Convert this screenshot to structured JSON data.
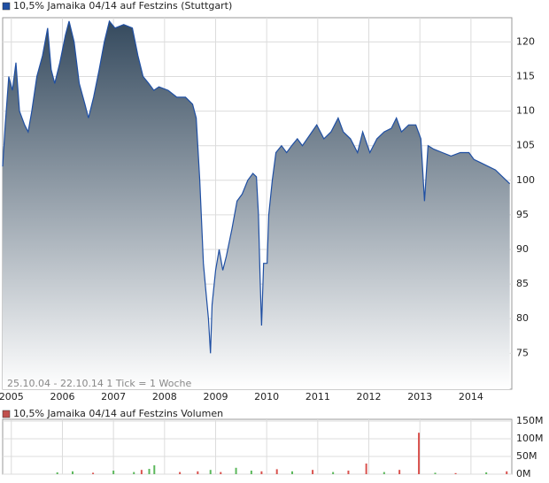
{
  "chart_data": [
    {
      "type": "area",
      "annotation": "25.10.04 - 22.10.14   1 Tick = 1 Woche",
      "xlim": [
        2004.83,
        2014.8
      ],
      "xticks": [
        2005,
        2006,
        2007,
        2008,
        2009,
        2010,
        2011,
        2012,
        2013,
        2014
      ],
      "ylim": [
        69.8,
        123.5
      ],
      "yticks": [
        75,
        80,
        85,
        90,
        95,
        100,
        105,
        110,
        115,
        120
      ],
      "grid": true,
      "x": [
        2004.83,
        2004.88,
        2004.95,
        2005.02,
        2005.09,
        2005.16,
        2005.26,
        2005.33,
        2005.4,
        2005.5,
        2005.61,
        2005.71,
        2005.78,
        2005.85,
        2005.95,
        2006.06,
        2006.13,
        2006.23,
        2006.33,
        2006.44,
        2006.51,
        2006.61,
        2006.72,
        2006.82,
        2006.92,
        2007.03,
        2007.2,
        2007.37,
        2007.48,
        2007.58,
        2007.69,
        2007.79,
        2007.89,
        2008.07,
        2008.24,
        2008.41,
        2008.55,
        2008.62,
        2008.69,
        2008.76,
        2008.81,
        2008.86,
        2008.9,
        2008.93,
        2009.0,
        2009.07,
        2009.14,
        2009.21,
        2009.32,
        2009.42,
        2009.52,
        2009.63,
        2009.73,
        2009.8,
        2009.84,
        2009.87,
        2009.9,
        2009.94,
        2010.01,
        2010.04,
        2010.11,
        2010.18,
        2010.29,
        2010.39,
        2010.49,
        2010.6,
        2010.7,
        2010.84,
        2010.98,
        2011.12,
        2011.26,
        2011.4,
        2011.5,
        2011.64,
        2011.78,
        2011.88,
        2012.02,
        2012.16,
        2012.3,
        2012.44,
        2012.54,
        2012.64,
        2012.78,
        2012.92,
        2013.02,
        2013.09,
        2013.16,
        2013.27,
        2013.44,
        2013.61,
        2013.79,
        2013.96,
        2014.06,
        2014.2,
        2014.34,
        2014.48,
        2014.62,
        2014.76
      ],
      "series": [
        {
          "name": "10,5% Jamaika 04/14 auf Festzins (Stuttgart)",
          "color": "#1f4fa3",
          "values": [
            102,
            108,
            115,
            113,
            117,
            110,
            108,
            107,
            110,
            115,
            118,
            122,
            116,
            114,
            117,
            121,
            123,
            120,
            114,
            111,
            109,
            112,
            116,
            120,
            123,
            122,
            122.5,
            122,
            118,
            115,
            114,
            113,
            113.5,
            113,
            112,
            112,
            111,
            109,
            100,
            88,
            84,
            80,
            75,
            82,
            87,
            90,
            87,
            89,
            93,
            97,
            98,
            100,
            101,
            100.5,
            95,
            86,
            79,
            88,
            88,
            95,
            100,
            104,
            105,
            104,
            105,
            106,
            105,
            106.5,
            108,
            106,
            107,
            109,
            107,
            106,
            104,
            107,
            104,
            106,
            107,
            107.5,
            109,
            107,
            108,
            108,
            106,
            97,
            105,
            104.5,
            104,
            103.5,
            104,
            104,
            103,
            102.5,
            102,
            101.5,
            100.5,
            99.5
          ]
        }
      ]
    },
    {
      "type": "bar",
      "xlim": [
        2004.83,
        2014.8
      ],
      "xticks": [
        2005,
        2006,
        2007,
        2008,
        2009,
        2010,
        2011,
        2012,
        2013,
        2014
      ],
      "ylim": [
        0,
        155
      ],
      "yticks": [
        {
          "value": 0,
          "label": "0M"
        },
        {
          "value": 50,
          "label": "50M"
        },
        {
          "value": 100,
          "label": "100M"
        },
        {
          "value": 150,
          "label": "150M"
        }
      ],
      "grid": true,
      "x": [
        2005.9,
        2006.2,
        2006.6,
        2007.0,
        2007.4,
        2007.55,
        2007.7,
        2007.8,
        2008.3,
        2008.65,
        2008.9,
        2009.1,
        2009.4,
        2009.7,
        2009.9,
        2010.2,
        2010.5,
        2010.9,
        2011.3,
        2011.6,
        2011.95,
        2012.3,
        2012.6,
        2012.98,
        2013.3,
        2013.7,
        2014.3,
        2014.7
      ],
      "series": [
        {
          "name": "10,5% Jamaika 04/14 auf Festzins Volumen",
          "color": "#c0504d",
          "values": [
            5,
            8,
            4,
            10,
            6,
            12,
            15,
            25,
            6,
            8,
            12,
            6,
            18,
            10,
            8,
            14,
            8,
            12,
            6,
            10,
            30,
            6,
            12,
            117,
            4,
            3,
            5,
            8
          ],
          "colors": [
            "#5cb85c",
            "#5cb85c",
            "#d9534f",
            "#5cb85c",
            "#5cb85c",
            "#d9534f",
            "#5cb85c",
            "#5cb85c",
            "#d9534f",
            "#d9534f",
            "#5cb85c",
            "#d9534f",
            "#5cb85c",
            "#5cb85c",
            "#d9534f",
            "#d9534f",
            "#5cb85c",
            "#d9534f",
            "#5cb85c",
            "#d9534f",
            "#d9534f",
            "#5cb85c",
            "#d9534f",
            "#d9534f",
            "#5cb85c",
            "#d9534f",
            "#5cb85c",
            "#d9534f"
          ]
        }
      ]
    }
  ]
}
